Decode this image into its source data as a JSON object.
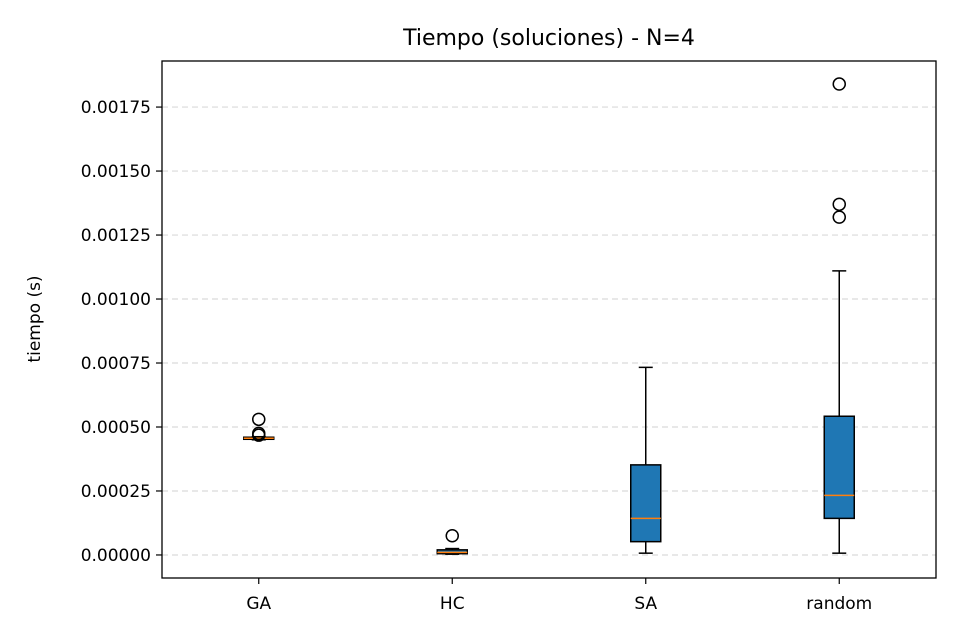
{
  "chart_data": {
    "type": "box",
    "title": "Tiempo (soluciones) - N=4",
    "xlabel": "",
    "ylabel": "tiempo (s)",
    "ylim": [
      -9e-05,
      0.00193
    ],
    "yticks": [
      "0.00000",
      "0.00025",
      "0.00050",
      "0.00075",
      "0.00100",
      "0.00125",
      "0.00150",
      "0.00175"
    ],
    "ytick_values": [
      0,
      0.00025,
      0.0005,
      0.00075,
      0.001,
      0.00125,
      0.0015,
      0.00175
    ],
    "grid": "y-dashed",
    "categories": [
      "GA",
      "HC",
      "SA",
      "random"
    ],
    "boxes": [
      {
        "category": "GA",
        "whisker_low": 0.00045,
        "q1": 0.000452,
        "median": 0.000456,
        "q3": 0.00046,
        "whisker_high": 0.000462,
        "outliers": [
          0.00053,
          0.000475,
          0.000468
        ]
      },
      {
        "category": "HC",
        "whisker_low": 3e-06,
        "q1": 5e-06,
        "median": 1e-05,
        "q3": 2e-05,
        "whisker_high": 2.5e-05,
        "outliers": [
          7.5e-05
        ]
      },
      {
        "category": "SA",
        "whisker_low": 7e-06,
        "q1": 5.2e-05,
        "median": 0.000143,
        "q3": 0.000352,
        "whisker_high": 0.000733,
        "outliers": []
      },
      {
        "category": "random",
        "whisker_low": 7e-06,
        "q1": 0.000143,
        "median": 0.000233,
        "q3": 0.000542,
        "whisker_high": 0.00111,
        "outliers": [
          0.00184,
          0.00137,
          0.00132
        ]
      }
    ],
    "colors": {
      "box_fill": "#1f77b4",
      "median": "#ff7f0e",
      "edge": "#000000",
      "grid": "#d9d9d9"
    }
  }
}
